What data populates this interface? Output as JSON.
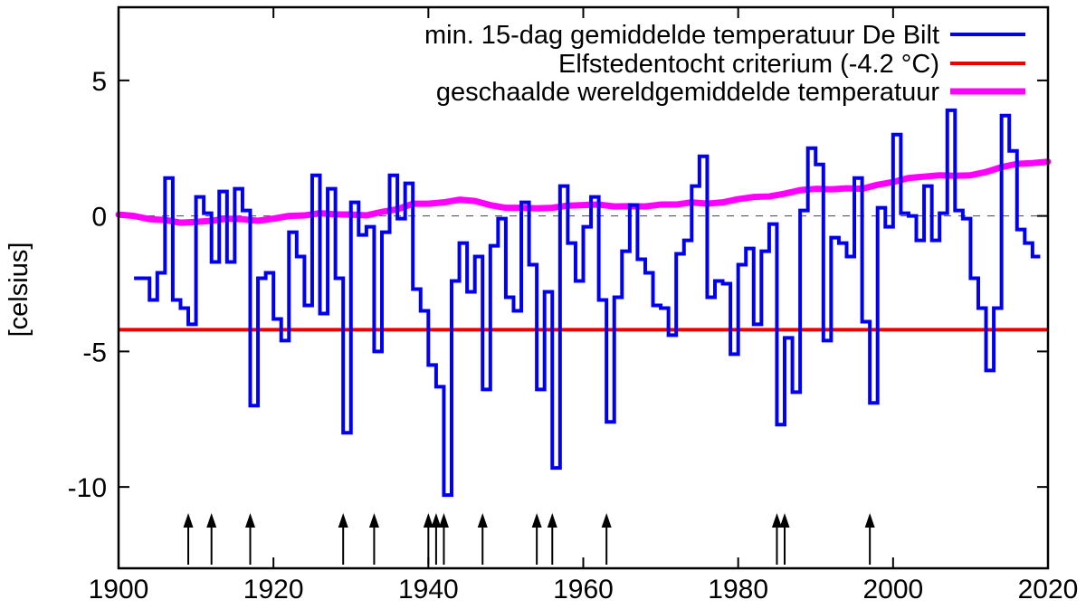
{
  "chart_data": {
    "type": "line",
    "title": "",
    "xlabel": "",
    "ylabel": "[celsius]",
    "xlim": [
      1900,
      2020
    ],
    "ylim": [
      -13,
      7.7
    ],
    "x_ticks": [
      1900,
      1920,
      1940,
      1960,
      1980,
      2000,
      2020
    ],
    "y_ticks": [
      5,
      0,
      -5,
      -10
    ],
    "grid": false,
    "zero_line_dashed": true,
    "legend_position": "top-right",
    "legend": [
      {
        "label": "min. 15-dag gemiddelde temperatuur De Bilt",
        "color": "#0000ee",
        "line_width": 4
      },
      {
        "label": "Elfstedentocht criterium (-4.2 °C)",
        "color": "#ee0000",
        "line_width": 4
      },
      {
        "label": "geschaalde wereldgemiddelde temperatuur",
        "color": "#ff00ff",
        "line_width": 7
      }
    ],
    "series": [
      {
        "name": "min. 15-dag gemiddelde temperatuur De Bilt",
        "style": "step",
        "color": "#0000ee",
        "line_width": 4,
        "x_start": 1902,
        "x": [
          1902,
          1903,
          1904,
          1905,
          1906,
          1907,
          1908,
          1909,
          1910,
          1911,
          1912,
          1913,
          1914,
          1915,
          1916,
          1917,
          1918,
          1919,
          1920,
          1921,
          1922,
          1923,
          1924,
          1925,
          1926,
          1927,
          1928,
          1929,
          1930,
          1931,
          1932,
          1933,
          1934,
          1935,
          1936,
          1937,
          1938,
          1939,
          1940,
          1941,
          1942,
          1943,
          1944,
          1945,
          1946,
          1947,
          1948,
          1949,
          1950,
          1951,
          1952,
          1953,
          1954,
          1955,
          1956,
          1957,
          1958,
          1959,
          1960,
          1961,
          1962,
          1963,
          1964,
          1965,
          1966,
          1967,
          1968,
          1969,
          1970,
          1971,
          1972,
          1973,
          1974,
          1975,
          1976,
          1977,
          1978,
          1979,
          1980,
          1981,
          1982,
          1983,
          1984,
          1985,
          1986,
          1987,
          1988,
          1989,
          1990,
          1991,
          1992,
          1993,
          1994,
          1995,
          1996,
          1997,
          1998,
          1999,
          2000,
          2001,
          2002,
          2003,
          2004,
          2005,
          2006,
          2007,
          2008,
          2009,
          2010,
          2011,
          2012,
          2013,
          2014,
          2015,
          2016,
          2017,
          2018
        ],
        "values": [
          -2.3,
          -2.3,
          -3.1,
          -2.1,
          1.4,
          -3.1,
          -3.4,
          -4.0,
          0.7,
          0.1,
          -1.7,
          0.9,
          -1.7,
          1.0,
          0.2,
          -7.0,
          -2.3,
          -2.1,
          -3.8,
          -4.6,
          -0.6,
          -1.5,
          -3.3,
          1.5,
          -3.6,
          1.0,
          -2.3,
          -8.0,
          0.5,
          -0.7,
          -0.4,
          -5.0,
          -0.6,
          1.5,
          -0.1,
          1.2,
          -2.7,
          -3.5,
          -5.5,
          -6.3,
          -10.3,
          -2.4,
          -1.0,
          -2.8,
          -1.5,
          -6.4,
          -1.1,
          -0.1,
          -3.0,
          -3.5,
          0.5,
          -1.8,
          -6.4,
          -2.8,
          -9.3,
          1.1,
          -1.0,
          -2.4,
          -0.4,
          0.7,
          -3.1,
          -7.6,
          -3.0,
          -1.3,
          0.4,
          -1.6,
          -2.1,
          -3.3,
          -3.4,
          -4.4,
          -1.4,
          -0.9,
          1.1,
          2.2,
          -3.0,
          -2.4,
          -2.5,
          -5.1,
          -1.8,
          -1.2,
          -4.0,
          -1.3,
          -0.3,
          -7.7,
          -4.5,
          -6.5,
          0.2,
          2.5,
          1.9,
          -4.6,
          -0.8,
          -1.0,
          -1.5,
          1.4,
          -3.9,
          -6.9,
          0.3,
          -0.4,
          3.0,
          0.1,
          0.0,
          -0.9,
          1.1,
          -0.9,
          0.1,
          3.9,
          0.2,
          -0.1,
          -2.3,
          -3.4,
          -5.7,
          -3.4,
          3.7,
          2.4,
          -0.5,
          -1.0,
          -1.5
        ]
      },
      {
        "name": "Elfstedentocht criterium (-4.2 °C)",
        "style": "hline",
        "color": "#ee0000",
        "line_width": 4,
        "value": -4.2
      },
      {
        "name": "geschaalde wereldgemiddelde temperatuur",
        "style": "line",
        "color": "#ff00ff",
        "line_width": 7,
        "x": [
          1900,
          1902,
          1904,
          1906,
          1908,
          1910,
          1912,
          1914,
          1916,
          1918,
          1920,
          1922,
          1924,
          1926,
          1928,
          1930,
          1932,
          1934,
          1936,
          1938,
          1940,
          1942,
          1944,
          1946,
          1948,
          1950,
          1952,
          1954,
          1956,
          1958,
          1960,
          1962,
          1964,
          1966,
          1968,
          1970,
          1972,
          1974,
          1976,
          1978,
          1980,
          1982,
          1984,
          1986,
          1988,
          1990,
          1992,
          1994,
          1996,
          1998,
          2000,
          2002,
          2004,
          2006,
          2008,
          2010,
          2012,
          2014,
          2016,
          2018,
          2020
        ],
        "values": [
          0.05,
          0.0,
          -0.12,
          -0.15,
          -0.25,
          -0.22,
          -0.18,
          -0.1,
          -0.12,
          -0.18,
          -0.1,
          0.0,
          0.02,
          0.1,
          0.06,
          0.05,
          0.02,
          0.15,
          0.25,
          0.45,
          0.45,
          0.5,
          0.6,
          0.55,
          0.4,
          0.3,
          0.3,
          0.28,
          0.3,
          0.38,
          0.4,
          0.42,
          0.35,
          0.36,
          0.35,
          0.42,
          0.42,
          0.5,
          0.45,
          0.5,
          0.62,
          0.7,
          0.72,
          0.82,
          0.95,
          1.0,
          0.98,
          1.02,
          1.0,
          1.15,
          1.25,
          1.4,
          1.45,
          1.5,
          1.48,
          1.5,
          1.62,
          1.8,
          1.92,
          1.95,
          2.0
        ]
      }
    ],
    "annotations": {
      "arrow_marker_years": [
        1909,
        1912,
        1917,
        1929,
        1933,
        1940,
        1941,
        1942,
        1947,
        1954,
        1956,
        1963,
        1985,
        1986,
        1997
      ],
      "arrow_color": "#000000"
    },
    "axis_color": "#000000",
    "zero_line_value": 0
  }
}
